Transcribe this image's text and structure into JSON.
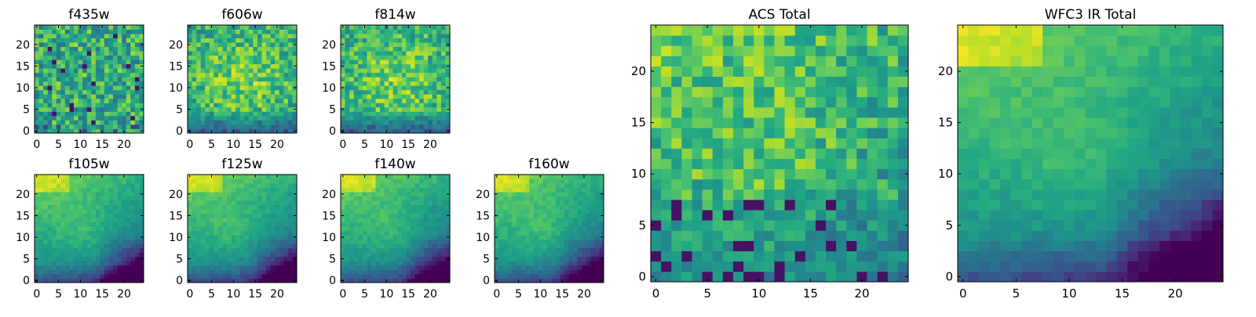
{
  "chart_data": {
    "type": "heatmap",
    "colormap": "viridis",
    "panels": [
      {
        "id": "f435w",
        "title": "f435w",
        "grid_size": 25,
        "x_ticks": [
          0,
          5,
          10,
          15,
          20
        ],
        "y_ticks": [
          0,
          5,
          10,
          15,
          20
        ],
        "texture": "uniform-noise"
      },
      {
        "id": "f606w",
        "title": "f606w",
        "grid_size": 25,
        "x_ticks": [
          0,
          5,
          10,
          15,
          20
        ],
        "y_ticks": [
          0,
          5,
          10,
          15,
          20
        ],
        "texture": "noise-bright-center-dark-bottom"
      },
      {
        "id": "f814w",
        "title": "f814w",
        "grid_size": 25,
        "x_ticks": [
          0,
          5,
          10,
          15,
          20
        ],
        "y_ticks": [
          0,
          5,
          10,
          15,
          20
        ],
        "texture": "noise-bright-center-dark-bottom"
      },
      {
        "id": "f105w",
        "title": "f105w",
        "grid_size": 25,
        "x_ticks": [
          0,
          5,
          10,
          15,
          20
        ],
        "y_ticks": [
          0,
          5,
          10,
          15,
          20
        ],
        "texture": "smooth-bright-top-left-dark-bottom-right"
      },
      {
        "id": "f125w",
        "title": "f125w",
        "grid_size": 25,
        "x_ticks": [
          0,
          5,
          10,
          15,
          20
        ],
        "y_ticks": [
          0,
          5,
          10,
          15,
          20
        ],
        "texture": "smooth-bright-top-left-dark-bottom-right"
      },
      {
        "id": "f140w",
        "title": "f140w",
        "grid_size": 25,
        "x_ticks": [
          0,
          5,
          10,
          15,
          20
        ],
        "y_ticks": [
          0,
          5,
          10,
          15,
          20
        ],
        "texture": "smooth-bright-top-left-dark-bottom-right"
      },
      {
        "id": "f160w",
        "title": "f160w",
        "grid_size": 25,
        "x_ticks": [
          0,
          5,
          10,
          15,
          20
        ],
        "y_ticks": [
          0,
          5,
          10,
          15,
          20
        ],
        "texture": "smooth-bright-top-left-dark-bottom-right"
      },
      {
        "id": "acs_total",
        "title": "ACS Total",
        "grid_size": 25,
        "x_ticks": [
          0,
          5,
          10,
          15,
          20
        ],
        "y_ticks": [
          0,
          5,
          10,
          15,
          20
        ],
        "texture": "noise-bright-top-left-dark-bottom"
      },
      {
        "id": "wfc3_ir_total",
        "title": "WFC3 IR Total",
        "grid_size": 25,
        "x_ticks": [
          0,
          5,
          10,
          15,
          20
        ],
        "y_ticks": [
          0,
          5,
          10,
          15,
          20
        ],
        "texture": "smooth-bright-top-left-dark-bottom-right"
      }
    ]
  }
}
